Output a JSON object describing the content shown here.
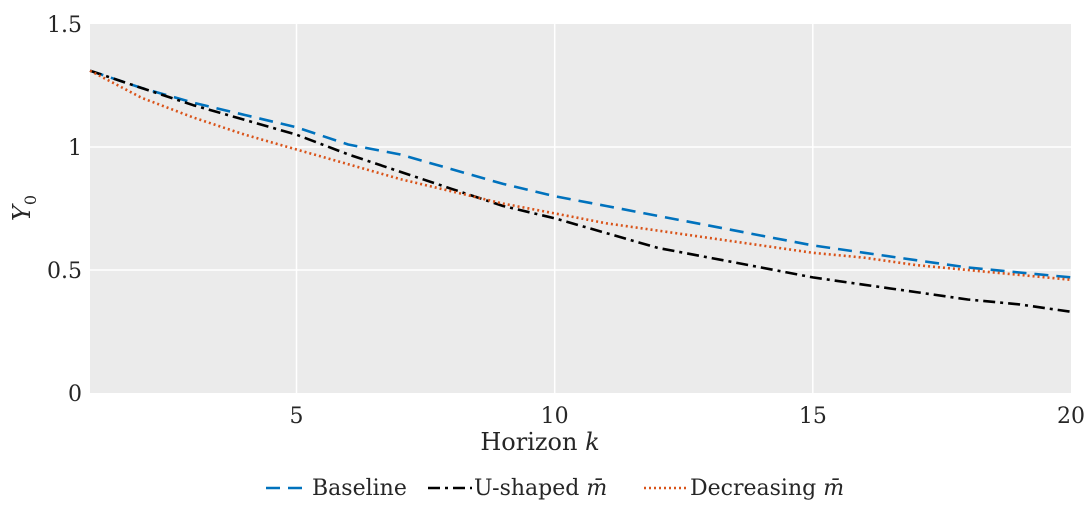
{
  "chart_data": {
    "type": "line",
    "title": "",
    "xlabel": "Horizon",
    "xlabel_var": "k",
    "ylabel": "Y",
    "ylabel_sub": "0",
    "xlim": [
      1,
      20
    ],
    "ylim": [
      0,
      1.5
    ],
    "xticks": [
      5,
      10,
      15,
      20
    ],
    "xtick_labels": [
      "5",
      "10",
      "15",
      "20"
    ],
    "yticks": [
      0,
      0.5,
      1,
      1.5
    ],
    "ytick_labels": [
      "0",
      "0.5",
      "1",
      "1.5"
    ],
    "grid": true,
    "legend_position": "bottom",
    "x": [
      1,
      2,
      3,
      4,
      5,
      6,
      7,
      8,
      9,
      10,
      11,
      12,
      13,
      14,
      15,
      16,
      17,
      18,
      19,
      20
    ],
    "series": [
      {
        "name": "Baseline",
        "color": "#0072BD",
        "style": "dashed",
        "values": [
          1.31,
          1.24,
          1.18,
          1.13,
          1.08,
          1.01,
          0.97,
          0.91,
          0.85,
          0.8,
          0.76,
          0.72,
          0.68,
          0.64,
          0.6,
          0.57,
          0.54,
          0.51,
          0.49,
          0.47
        ]
      },
      {
        "name": "U-shaped",
        "name_var": "m̄",
        "color": "#000000",
        "style": "dashdot",
        "values": [
          1.31,
          1.24,
          1.17,
          1.11,
          1.05,
          0.97,
          0.9,
          0.83,
          0.76,
          0.71,
          0.65,
          0.59,
          0.55,
          0.51,
          0.47,
          0.44,
          0.41,
          0.38,
          0.36,
          0.33
        ]
      },
      {
        "name": "Decreasing",
        "name_var": "m̄",
        "color": "#D95319",
        "style": "dotted",
        "values": [
          1.31,
          1.2,
          1.12,
          1.05,
          0.99,
          0.93,
          0.87,
          0.82,
          0.77,
          0.73,
          0.69,
          0.66,
          0.63,
          0.6,
          0.57,
          0.55,
          0.52,
          0.5,
          0.48,
          0.46
        ]
      }
    ]
  }
}
